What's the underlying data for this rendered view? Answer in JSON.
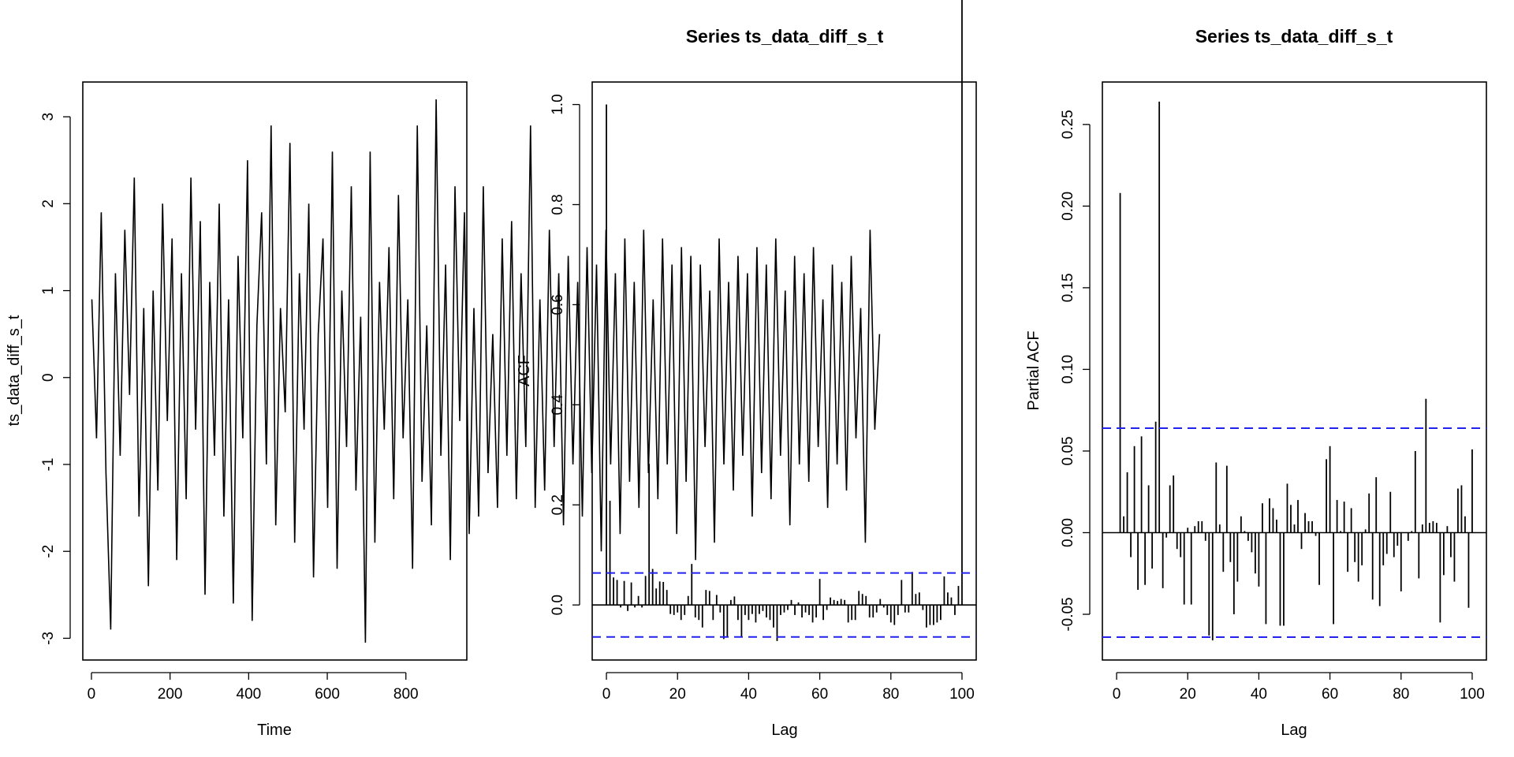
{
  "chart_data": [
    {
      "type": "line",
      "title": "",
      "xlabel": "Time",
      "ylabel": "ts_data_diff_s_t",
      "xlim": [
        -22,
        955
      ],
      "ylim": [
        -3.25,
        3.4
      ],
      "xticks": [
        0,
        200,
        400,
        600,
        800
      ],
      "yticks": [
        -3,
        -2,
        -1,
        0,
        1,
        2,
        3
      ],
      "xtick_labels": [
        "0",
        "200",
        "400",
        "600",
        "800"
      ],
      "ytick_labels": [
        "-3",
        "-2",
        "-1",
        "0",
        "1",
        "2",
        "3"
      ],
      "series": [
        {
          "color": "#000000",
          "x_start": 1,
          "x_step": 12,
          "values": [
            0.9,
            -0.7,
            1.9,
            -1.1,
            -2.9,
            1.2,
            -0.9,
            1.7,
            -0.2,
            2.3,
            -1.6,
            0.8,
            -2.4,
            1.0,
            -1.3,
            2.0,
            -0.5,
            1.6,
            -2.1,
            1.2,
            -1.4,
            2.3,
            -0.6,
            1.8,
            -2.5,
            1.1,
            -0.9,
            2.0,
            -1.6,
            0.9,
            -2.6,
            1.4,
            -0.7,
            2.5,
            -2.8,
            0.6,
            1.9,
            -1.0,
            2.9,
            -1.7,
            0.8,
            -0.4,
            2.7,
            -1.9,
            1.2,
            -0.6,
            2.0,
            -2.3,
            0.5,
            1.6,
            -1.5,
            2.6,
            -2.2,
            1.0,
            -0.8,
            2.2,
            -1.3,
            0.7,
            -3.05,
            2.6,
            -1.9,
            1.1,
            -0.6,
            1.5,
            -1.4,
            2.1,
            -0.7,
            0.9,
            -2.2,
            2.9,
            -1.2,
            0.6,
            -1.7,
            3.2,
            -0.9,
            1.3,
            -2.1,
            2.2,
            -0.5,
            1.9,
            -1.8,
            0.8,
            -1.6,
            2.2,
            -1.1,
            0.5,
            -1.5,
            1.6,
            -0.9,
            1.8,
            -1.4,
            1.2,
            -0.8,
            2.9,
            -1.5,
            0.9,
            -1.3,
            1.7,
            -0.8,
            1.2,
            -1.7,
            1.4,
            -1.0,
            1.1,
            -1.6,
            1.5,
            -1.1,
            1.3,
            -2.0,
            1.7,
            -1.0,
            1.2,
            -1.8,
            1.6,
            -1.2,
            1.1,
            -1.5,
            1.7,
            -1.1,
            0.9,
            -1.4,
            1.6,
            -1.0,
            1.3,
            -1.8,
            1.5,
            -1.2,
            1.4,
            -2.1,
            1.3,
            -0.8,
            1.0,
            -1.9,
            1.6,
            -1.0,
            1.1,
            -1.3,
            1.4,
            -0.9,
            1.2,
            -1.6,
            1.5,
            -1.1,
            1.3,
            -1.4,
            1.6,
            -0.9,
            1.0,
            -1.7,
            1.4,
            -1.0,
            1.2,
            -1.2,
            1.5,
            -0.8,
            0.9,
            -1.5,
            1.3,
            -1.0,
            1.1,
            -1.3,
            1.4,
            -0.7,
            0.8,
            -1.9,
            1.7,
            -0.6,
            0.5
          ]
        }
      ]
    },
    {
      "type": "bar",
      "title": "Series  ts_data_diff_s_t",
      "xlabel": "Lag",
      "ylabel": "ACF",
      "xlim": [
        -4,
        104
      ],
      "ylim": [
        -0.11,
        1.045
      ],
      "xticks": [
        0,
        20,
        40,
        60,
        80,
        100
      ],
      "yticks": [
        0.0,
        0.2,
        0.4,
        0.6,
        0.8,
        1.0
      ],
      "xtick_labels": [
        "0",
        "20",
        "40",
        "60",
        "80",
        "100"
      ],
      "ytick_labels": [
        "0.0",
        "0.2",
        "0.4",
        "0.6",
        "0.8",
        "1.0"
      ],
      "reference_lines": [
        0.064,
        -0.064
      ],
      "lags": [
        0,
        1,
        2,
        3,
        4,
        5,
        6,
        7,
        8,
        9,
        10,
        11,
        12,
        13,
        14,
        15,
        16,
        17,
        18,
        19,
        20,
        21,
        22,
        23,
        24,
        25,
        26,
        27,
        28,
        29,
        30,
        31,
        32,
        33,
        34,
        35,
        36,
        37,
        38,
        39,
        40,
        41,
        42,
        43,
        44,
        45,
        46,
        47,
        48,
        49,
        50,
        51,
        52,
        53,
        54,
        55,
        56,
        57,
        58,
        59,
        60,
        61,
        62,
        63,
        64,
        65,
        66,
        67,
        68,
        69,
        70,
        71,
        72,
        73,
        74,
        75,
        76,
        77,
        78,
        79,
        80,
        81,
        82,
        83,
        84,
        85,
        86,
        87,
        88,
        89,
        90,
        91,
        92,
        93,
        94,
        95,
        96,
        97,
        98,
        99,
        100
      ],
      "values": [
        1.0,
        0.208,
        0.055,
        0.05,
        -0.005,
        0.048,
        -0.012,
        0.045,
        -0.005,
        0.018,
        -0.005,
        0.058,
        0.282,
        0.072,
        0.033,
        0.047,
        0.046,
        0.03,
        -0.018,
        -0.02,
        -0.015,
        -0.03,
        -0.02,
        0.018,
        0.082,
        -0.025,
        -0.03,
        -0.045,
        0.03,
        0.028,
        -0.03,
        0.02,
        -0.015,
        -0.068,
        -0.065,
        0.01,
        0.017,
        -0.03,
        -0.065,
        -0.02,
        -0.03,
        -0.018,
        -0.035,
        -0.018,
        -0.012,
        -0.025,
        -0.03,
        -0.045,
        -0.072,
        -0.02,
        -0.015,
        -0.01,
        0.01,
        -0.02,
        0.005,
        -0.025,
        -0.015,
        -0.02,
        -0.035,
        -0.025,
        0.052,
        -0.03,
        -0.01,
        0.015,
        0.01,
        0.008,
        0.012,
        0.01,
        -0.035,
        -0.03,
        -0.03,
        0.028,
        0.022,
        0.018,
        -0.025,
        -0.025,
        -0.015,
        0.012,
        -0.005,
        -0.02,
        -0.035,
        -0.04,
        -0.02,
        0.05,
        -0.015,
        -0.015,
        0.066,
        0.022,
        0.025,
        -0.01,
        -0.045,
        -0.04,
        -0.04,
        -0.035,
        -0.03,
        0.057,
        0.025,
        0.015,
        -0.02,
        0.038
      ]
    },
    {
      "type": "bar",
      "title": "Series  ts_data_diff_s_t",
      "xlabel": "Lag",
      "ylabel": "Partial ACF",
      "xlim": [
        -4,
        104
      ],
      "ylim": [
        -0.078,
        0.276
      ],
      "xticks": [
        0,
        20,
        40,
        60,
        80,
        100
      ],
      "yticks": [
        -0.05,
        0.0,
        0.05,
        0.1,
        0.15,
        0.2,
        0.25
      ],
      "xtick_labels": [
        "0",
        "20",
        "40",
        "60",
        "80",
        "100"
      ],
      "ytick_labels": [
        "-0.05",
        "0.00",
        "0.05",
        "0.10",
        "0.15",
        "0.20",
        "0.25"
      ],
      "reference_lines": [
        0.064,
        -0.064
      ],
      "lags": [
        1,
        2,
        3,
        4,
        5,
        6,
        7,
        8,
        9,
        10,
        11,
        12,
        13,
        14,
        15,
        16,
        17,
        18,
        19,
        20,
        21,
        22,
        23,
        24,
        25,
        26,
        27,
        28,
        29,
        30,
        31,
        32,
        33,
        34,
        35,
        36,
        37,
        38,
        39,
        40,
        41,
        42,
        43,
        44,
        45,
        46,
        47,
        48,
        49,
        50,
        51,
        52,
        53,
        54,
        55,
        56,
        57,
        58,
        59,
        60,
        61,
        62,
        63,
        64,
        65,
        66,
        67,
        68,
        69,
        70,
        71,
        72,
        73,
        74,
        75,
        76,
        77,
        78,
        79,
        80,
        81,
        82,
        83,
        84,
        85,
        86,
        87,
        88,
        89,
        90,
        91,
        92,
        93,
        94,
        95,
        96,
        97,
        98,
        99,
        100
      ],
      "values": [
        0.208,
        0.01,
        0.037,
        -0.015,
        0.053,
        -0.035,
        0.059,
        -0.032,
        0.029,
        -0.022,
        0.068,
        0.264,
        -0.034,
        -0.003,
        0.029,
        0.035,
        -0.01,
        -0.015,
        -0.044,
        0.003,
        -0.044,
        0.004,
        0.007,
        0.007,
        -0.005,
        -0.063,
        -0.066,
        0.043,
        0.005,
        -0.024,
        0.041,
        -0.018,
        -0.05,
        -0.03,
        0.01,
        0.001,
        -0.005,
        -0.012,
        -0.025,
        -0.033,
        0.018,
        -0.056,
        0.021,
        0.015,
        0.008,
        -0.057,
        -0.057,
        0.03,
        0.017,
        0.005,
        0.02,
        -0.01,
        0.012,
        0.007,
        0.007,
        -0.002,
        -0.032,
        0.0,
        0.045,
        0.053,
        -0.056,
        0.02,
        0.001,
        0.019,
        -0.024,
        0.015,
        -0.018,
        -0.03,
        -0.02,
        0.002,
        0.024,
        -0.041,
        0.034,
        -0.045,
        -0.02,
        -0.013,
        0.025,
        -0.015,
        -0.008,
        -0.036,
        0.0,
        -0.005,
        0.001,
        0.05,
        -0.028,
        0.005,
        0.082,
        0.006,
        0.007,
        0.006,
        -0.055,
        -0.026,
        0.004,
        -0.015,
        -0.03,
        0.027,
        0.029,
        0.01,
        -0.046,
        0.051
      ]
    }
  ]
}
